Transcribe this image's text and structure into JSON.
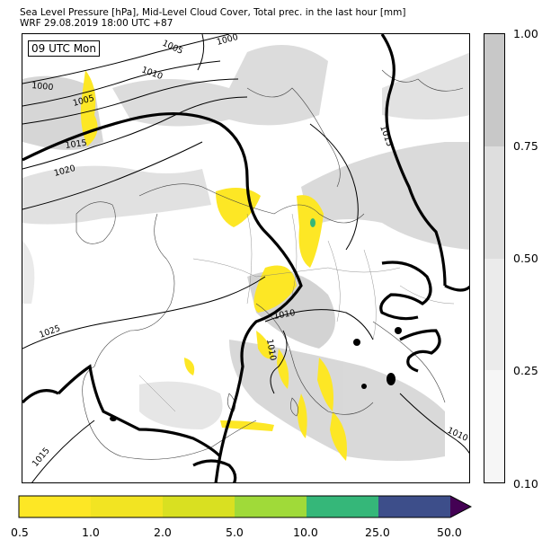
{
  "title": {
    "line1": "Sea Level Pressure [hPa], Mid-Level Cloud Cover, Total prec. in the last hour [mm]",
    "line2": "WRF 29.08.2019 18:00 UTC +87"
  },
  "map": {
    "time_label": "09 UTC Mon",
    "isobar_labels": [
      "1005",
      "1000",
      "1010",
      "1000",
      "1005",
      "1015",
      "1020",
      "1025",
      "1010",
      "1010",
      "1015",
      "1015",
      "1010"
    ]
  },
  "cloud_colorbar": {
    "ticks": [
      "1.00",
      "0.75",
      "0.50",
      "0.25",
      "0.10"
    ],
    "colors": [
      "#c8c8c8",
      "#dedede",
      "#ebebeb",
      "#f6f6f6"
    ]
  },
  "precip_colorbar": {
    "ticks": [
      "0.5",
      "1.0",
      "2.0",
      "5.0",
      "10.0",
      "25.0",
      "50.0"
    ],
    "colors": [
      "#fde725",
      "#f2e422",
      "#d9e021",
      "#a0da39",
      "#35b779",
      "#31688e",
      "#440154"
    ]
  }
}
